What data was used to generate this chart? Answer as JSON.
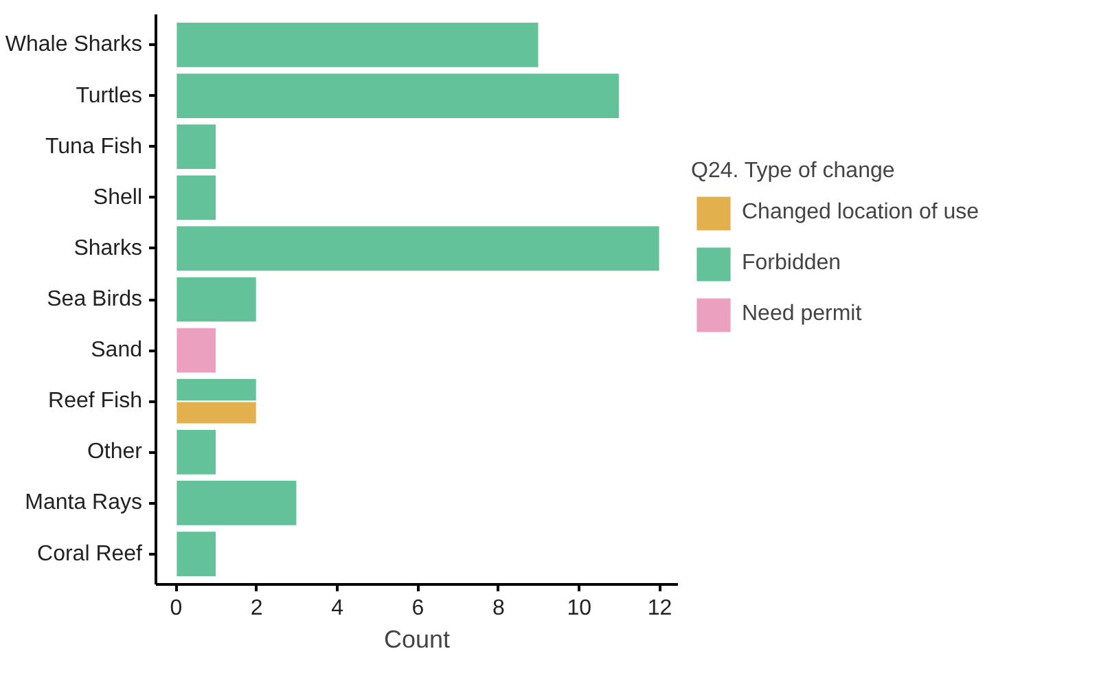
{
  "chart_data": {
    "type": "bar",
    "orientation": "horizontal",
    "xlabel": "Count",
    "legend_title": "Q24. Type of change",
    "legend": "right",
    "grid": false,
    "categories": [
      "Whale Sharks",
      "Turtles",
      "Tuna Fish",
      "Shell",
      "Sharks",
      "Sea Birds",
      "Sand",
      "Reef Fish",
      "Other",
      "Manta Rays",
      "Coral Reef"
    ],
    "series": [
      {
        "name": "Changed location of use",
        "color": "#e3b04e",
        "values": [
          null,
          null,
          null,
          null,
          null,
          null,
          null,
          2,
          null,
          null,
          null
        ]
      },
      {
        "name": "Forbidden",
        "color": "#63c29a",
        "values": [
          9,
          11,
          1,
          1,
          12,
          2,
          null,
          2,
          1,
          3,
          1
        ]
      },
      {
        "name": "Need permit",
        "color": "#eca0bf",
        "values": [
          null,
          null,
          null,
          null,
          null,
          null,
          1,
          null,
          null,
          null,
          null
        ]
      }
    ],
    "xlim": [
      -0.5,
      12.45
    ],
    "xticks": [
      0,
      2,
      4,
      6,
      8,
      10,
      12
    ]
  }
}
